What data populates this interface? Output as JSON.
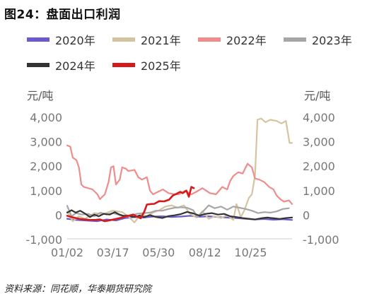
{
  "title": "图24：盘面出口利润",
  "source": "资料来源：同花顺，华泰期货研究院",
  "chart_data": {
    "type": "line",
    "ylabel_left": "元/吨",
    "ylabel_right": "元/吨",
    "ylim": [
      -1000,
      4000
    ],
    "yticks": [
      -1000,
      0,
      1000,
      2000,
      3000,
      4000
    ],
    "ytick_labels": [
      "-1,000",
      "0",
      "1,000",
      "2,000",
      "3,000",
      "4,000"
    ],
    "xlim": [
      1,
      365
    ],
    "xticks": [
      1,
      75,
      149,
      224,
      298
    ],
    "xtick_labels": [
      "01/02",
      "03/17",
      "05/30",
      "08/12",
      "10/25"
    ],
    "grid": false,
    "legend_position": "top",
    "series": [
      {
        "name": "2020年",
        "color": "#6a5acd",
        "points": [
          [
            1,
            -150
          ],
          [
            15,
            -200
          ],
          [
            30,
            -220
          ],
          [
            50,
            -250
          ],
          [
            65,
            -180
          ],
          [
            80,
            -220
          ],
          [
            95,
            -120
          ],
          [
            110,
            -80
          ],
          [
            125,
            -100
          ],
          [
            140,
            -60
          ],
          [
            155,
            -50
          ],
          [
            170,
            -80
          ],
          [
            185,
            -60
          ],
          [
            200,
            -30
          ],
          [
            215,
            -70
          ],
          [
            230,
            -50
          ],
          [
            245,
            -80
          ],
          [
            260,
            -100
          ],
          [
            275,
            -120
          ],
          [
            290,
            -150
          ],
          [
            305,
            -180
          ],
          [
            320,
            -160
          ],
          [
            335,
            -190
          ],
          [
            350,
            -170
          ],
          [
            365,
            -200
          ]
        ]
      },
      {
        "name": "2021年",
        "color": "#d4c4a0",
        "points": [
          [
            1,
            150
          ],
          [
            10,
            -250
          ],
          [
            20,
            -50
          ],
          [
            30,
            -150
          ],
          [
            45,
            80
          ],
          [
            60,
            50
          ],
          [
            75,
            180
          ],
          [
            90,
            120
          ],
          [
            100,
            -50
          ],
          [
            110,
            -300
          ],
          [
            120,
            50
          ],
          [
            130,
            -50
          ],
          [
            140,
            100
          ],
          [
            150,
            200
          ],
          [
            160,
            350
          ],
          [
            170,
            400
          ],
          [
            180,
            300
          ],
          [
            190,
            400
          ],
          [
            200,
            50
          ],
          [
            210,
            -100
          ],
          [
            220,
            150
          ],
          [
            230,
            -150
          ],
          [
            240,
            -50
          ],
          [
            250,
            -120
          ],
          [
            260,
            0
          ],
          [
            270,
            -200
          ],
          [
            275,
            450
          ],
          [
            282,
            -80
          ],
          [
            288,
            200
          ],
          [
            295,
            700
          ],
          [
            300,
            850
          ],
          [
            305,
            1600
          ],
          [
            309,
            3900
          ],
          [
            315,
            3950
          ],
          [
            322,
            3800
          ],
          [
            330,
            3900
          ],
          [
            340,
            3850
          ],
          [
            348,
            3750
          ],
          [
            355,
            3850
          ],
          [
            361,
            2950
          ],
          [
            365,
            2950
          ]
        ]
      },
      {
        "name": "2022年",
        "color": "#f08c8c",
        "points": [
          [
            1,
            2850
          ],
          [
            6,
            2800
          ],
          [
            10,
            2350
          ],
          [
            16,
            2250
          ],
          [
            20,
            1950
          ],
          [
            24,
            1250
          ],
          [
            28,
            1150
          ],
          [
            35,
            1100
          ],
          [
            42,
            1050
          ],
          [
            50,
            850
          ],
          [
            54,
            650
          ],
          [
            58,
            750
          ],
          [
            62,
            850
          ],
          [
            68,
            1350
          ],
          [
            72,
            1950
          ],
          [
            76,
            2000
          ],
          [
            80,
            1250
          ],
          [
            86,
            1450
          ],
          [
            90,
            1950
          ],
          [
            96,
            1900
          ],
          [
            100,
            1800
          ],
          [
            110,
            1850
          ],
          [
            116,
            1550
          ],
          [
            122,
            1450
          ],
          [
            130,
            1550
          ],
          [
            135,
            1000
          ],
          [
            140,
            850
          ],
          [
            148,
            950
          ],
          [
            156,
            1050
          ],
          [
            165,
            900
          ],
          [
            175,
            850
          ],
          [
            182,
            850
          ],
          [
            192,
            1000
          ],
          [
            202,
            850
          ],
          [
            210,
            950
          ],
          [
            220,
            1100
          ],
          [
            232,
            900
          ],
          [
            242,
            850
          ],
          [
            252,
            1150
          ],
          [
            260,
            1050
          ],
          [
            265,
            1400
          ],
          [
            270,
            1600
          ],
          [
            278,
            1750
          ],
          [
            285,
            1700
          ],
          [
            293,
            2100
          ],
          [
            300,
            1950
          ],
          [
            305,
            1500
          ],
          [
            312,
            1450
          ],
          [
            320,
            1350
          ],
          [
            328,
            1150
          ],
          [
            335,
            1050
          ],
          [
            340,
            800
          ],
          [
            346,
            650
          ],
          [
            352,
            550
          ],
          [
            360,
            600
          ],
          [
            365,
            450
          ]
        ]
      },
      {
        "name": "2023年",
        "color": "#a6a6a6",
        "points": [
          [
            1,
            380
          ],
          [
            8,
            -50
          ],
          [
            15,
            80
          ],
          [
            25,
            20
          ],
          [
            35,
            50
          ],
          [
            45,
            -50
          ],
          [
            55,
            100
          ],
          [
            65,
            20
          ],
          [
            75,
            80
          ],
          [
            85,
            10
          ],
          [
            95,
            -80
          ],
          [
            105,
            -20
          ],
          [
            115,
            60
          ],
          [
            125,
            80
          ],
          [
            135,
            100
          ],
          [
            145,
            180
          ],
          [
            155,
            180
          ],
          [
            165,
            250
          ],
          [
            175,
            300
          ],
          [
            185,
            320
          ],
          [
            195,
            300
          ],
          [
            205,
            200
          ],
          [
            212,
            -80
          ],
          [
            222,
            180
          ],
          [
            230,
            400
          ],
          [
            240,
            280
          ],
          [
            250,
            350
          ],
          [
            260,
            220
          ],
          [
            270,
            350
          ],
          [
            280,
            300
          ],
          [
            290,
            250
          ],
          [
            300,
            180
          ],
          [
            310,
            80
          ],
          [
            320,
            120
          ],
          [
            330,
            100
          ],
          [
            340,
            150
          ],
          [
            350,
            250
          ],
          [
            360,
            280
          ]
        ]
      },
      {
        "name": "2024年",
        "color": "#333333",
        "points": [
          [
            1,
            100
          ],
          [
            8,
            200
          ],
          [
            15,
            100
          ],
          [
            22,
            180
          ],
          [
            30,
            60
          ],
          [
            38,
            -80
          ],
          [
            45,
            20
          ],
          [
            52,
            -50
          ],
          [
            60,
            50
          ],
          [
            70,
            20
          ],
          [
            78,
            120
          ],
          [
            85,
            30
          ],
          [
            92,
            -30
          ],
          [
            100,
            -20
          ],
          [
            110,
            -80
          ],
          [
            118,
            -20
          ],
          [
            126,
            -80
          ],
          [
            135,
            0
          ],
          [
            145,
            -80
          ],
          [
            155,
            -120
          ],
          [
            165,
            -40
          ],
          [
            175,
            -10
          ],
          [
            185,
            40
          ],
          [
            195,
            130
          ],
          [
            205,
            70
          ],
          [
            215,
            -20
          ],
          [
            225,
            50
          ],
          [
            235,
            80
          ],
          [
            245,
            20
          ],
          [
            255,
            50
          ],
          [
            265,
            -50
          ],
          [
            275,
            -80
          ],
          [
            285,
            -120
          ],
          [
            295,
            -150
          ],
          [
            305,
            -180
          ],
          [
            315,
            -130
          ],
          [
            325,
            -100
          ],
          [
            335,
            -130
          ],
          [
            345,
            -160
          ],
          [
            355,
            -120
          ],
          [
            365,
            -100
          ]
        ]
      },
      {
        "name": "2025年",
        "color": "#d7191c",
        "points": [
          [
            1,
            -30
          ],
          [
            8,
            -80
          ],
          [
            15,
            -120
          ],
          [
            22,
            -160
          ],
          [
            30,
            -180
          ],
          [
            38,
            -200
          ],
          [
            46,
            -200
          ],
          [
            54,
            -180
          ],
          [
            62,
            -250
          ],
          [
            70,
            -210
          ],
          [
            80,
            -160
          ],
          [
            90,
            -100
          ],
          [
            100,
            -30
          ],
          [
            108,
            20
          ],
          [
            114,
            -60
          ],
          [
            120,
            -130
          ],
          [
            126,
            150
          ],
          [
            130,
            430
          ],
          [
            136,
            450
          ],
          [
            142,
            460
          ],
          [
            150,
            570
          ],
          [
            158,
            560
          ],
          [
            166,
            630
          ],
          [
            172,
            800
          ],
          [
            178,
            870
          ],
          [
            184,
            950
          ],
          [
            188,
            900
          ],
          [
            194,
            1000
          ],
          [
            198,
            750
          ],
          [
            202,
            1150
          ],
          [
            206,
            1100
          ]
        ]
      }
    ]
  }
}
